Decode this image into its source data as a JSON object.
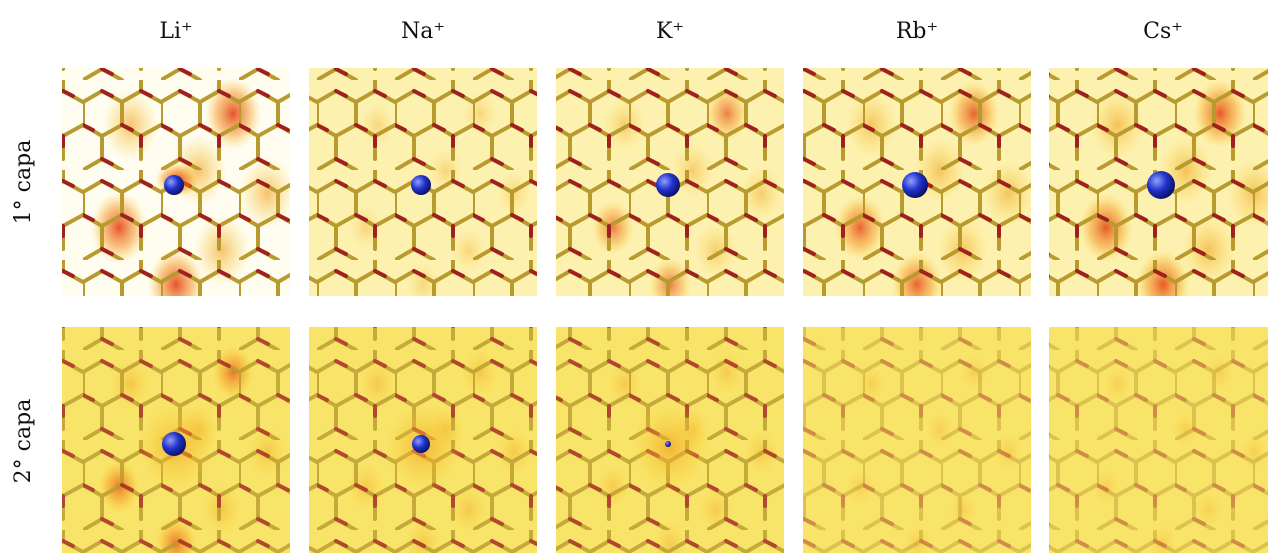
{
  "columns": [
    "Li⁺",
    "Na⁺",
    "K⁺",
    "Rb⁺",
    "Cs⁺"
  ],
  "rows": [
    "1° capa",
    "2° capa"
  ]
}
